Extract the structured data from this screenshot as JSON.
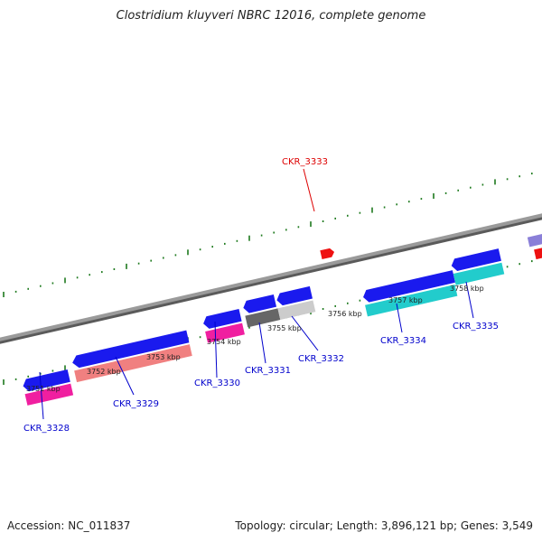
{
  "title": "Clostridium kluyveri NBRC 12016, complete genome",
  "accession_label": "Accession: NC_011837",
  "summary_label": "Topology: circular; Length: 3,896,121 bp; Genes: 3,549",
  "colors": {
    "axis": "#888888",
    "tick": "#1e7a1e",
    "gene_label": "#0000cc",
    "highlight_label": "#dd0000",
    "blue": "#1a1aee",
    "pink": "#f01fa0",
    "salmon": "#f08080",
    "dark_gray": "#666666",
    "light_gray": "#cccccc",
    "cyan": "#22cccc",
    "red": "#ee1111",
    "purple": "#8a7fd8"
  },
  "kbp_labels": [
    "3751 kbp",
    "3752 kbp",
    "3753 kbp",
    "3754 kbp",
    "3755 kbp",
    "3756 kbp",
    "3757 kbp",
    "3758 kbp"
  ],
  "gene_labels": [
    "CKR_3328",
    "CKR_3329",
    "CKR_3330",
    "CKR_3331",
    "CKR_3332",
    "CKR_3333",
    "CKR_3334",
    "CKR_3335"
  ]
}
